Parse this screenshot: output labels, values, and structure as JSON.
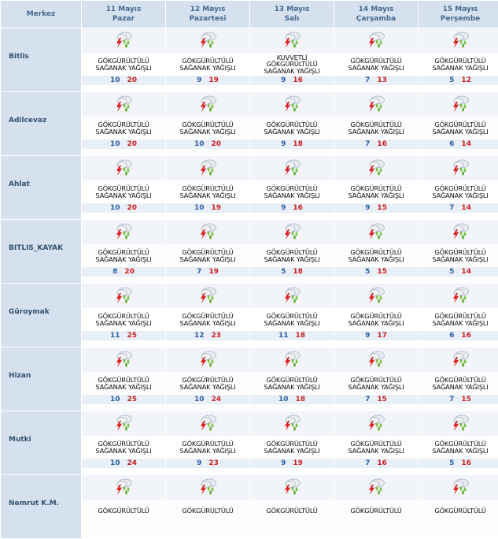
{
  "table": {
    "header_label": "Merkez",
    "days": [
      {
        "date": "11 Mayıs",
        "weekday": "Pazar"
      },
      {
        "date": "12 Mayıs",
        "weekday": "Pazartesi"
      },
      {
        "date": "13 Mayıs",
        "weekday": "Salı"
      },
      {
        "date": "14 Mayıs",
        "weekday": "Çarşamba"
      },
      {
        "date": "15 Mayıs",
        "weekday": "Perşembe"
      }
    ],
    "icon": "thunderstorm-rain-icon",
    "colors": {
      "min_temp": "#2b5fa8",
      "max_temp": "#cc1f1f",
      "header_bg": "#d5e1ee"
    },
    "rows": [
      {
        "city": "Bitlis",
        "cells": [
          {
            "desc": [
              "GÖKGÜRÜLTÜLÜ",
              "SAĞANAK YAĞIŞLI"
            ],
            "min": "10",
            "max": "20"
          },
          {
            "desc": [
              "GÖKGÜRÜLTÜLÜ",
              "SAĞANAK YAĞIŞLI"
            ],
            "min": "9",
            "max": "19"
          },
          {
            "desc": [
              "KUVVETLİ",
              "GÖKGÜRÜLTÜLÜ",
              "SAĞANAK YAĞIŞLI"
            ],
            "min": "9",
            "max": "16"
          },
          {
            "desc": [
              "GÖKGÜRÜLTÜLÜ",
              "SAĞANAK YAĞIŞLI"
            ],
            "min": "7",
            "max": "13"
          },
          {
            "desc": [
              "GÖKGÜRÜLTÜLÜ",
              "SAĞANAK YAĞIŞLI"
            ],
            "min": "5",
            "max": "12"
          }
        ]
      },
      {
        "city": "Adilcevaz",
        "cells": [
          {
            "desc": [
              "GÖKGÜRÜLTÜLÜ",
              "SAĞANAK YAĞIŞLI"
            ],
            "min": "10",
            "max": "20"
          },
          {
            "desc": [
              "GÖKGÜRÜLTÜLÜ",
              "SAĞANAK YAĞIŞLI"
            ],
            "min": "10",
            "max": "20"
          },
          {
            "desc": [
              "GÖKGÜRÜLTÜLÜ",
              "SAĞANAK YAĞIŞLI"
            ],
            "min": "9",
            "max": "18"
          },
          {
            "desc": [
              "GÖKGÜRÜLTÜLÜ",
              "SAĞANAK YAĞIŞLI"
            ],
            "min": "7",
            "max": "16"
          },
          {
            "desc": [
              "GÖKGÜRÜLTÜLÜ",
              "SAĞANAK YAĞIŞLI"
            ],
            "min": "6",
            "max": "14"
          }
        ]
      },
      {
        "city": "Ahlat",
        "cells": [
          {
            "desc": [
              "GÖKGÜRÜLTÜLÜ",
              "SAĞANAK YAĞIŞLI"
            ],
            "min": "10",
            "max": "20"
          },
          {
            "desc": [
              "GÖKGÜRÜLTÜLÜ",
              "SAĞANAK YAĞIŞLI"
            ],
            "min": "10",
            "max": "19"
          },
          {
            "desc": [
              "GÖKGÜRÜLTÜLÜ",
              "SAĞANAK YAĞIŞLI"
            ],
            "min": "9",
            "max": "16"
          },
          {
            "desc": [
              "GÖKGÜRÜLTÜLÜ",
              "SAĞANAK YAĞIŞLI"
            ],
            "min": "9",
            "max": "15"
          },
          {
            "desc": [
              "GÖKGÜRÜLTÜLÜ",
              "SAĞANAK YAĞIŞLI"
            ],
            "min": "7",
            "max": "14"
          }
        ]
      },
      {
        "city": "BITLIS_KAYAK",
        "cells": [
          {
            "desc": [
              "GÖKGÜRÜLTÜLÜ",
              "SAĞANAK YAĞIŞLI"
            ],
            "min": "8",
            "max": "20"
          },
          {
            "desc": [
              "GÖKGÜRÜLTÜLÜ",
              "SAĞANAK YAĞIŞLI"
            ],
            "min": "7",
            "max": "19"
          },
          {
            "desc": [
              "GÖKGÜRÜLTÜLÜ",
              "SAĞANAK YAĞIŞLI"
            ],
            "min": "5",
            "max": "18"
          },
          {
            "desc": [
              "GÖKGÜRÜLTÜLÜ",
              "SAĞANAK YAĞIŞLI"
            ],
            "min": "5",
            "max": "15"
          },
          {
            "desc": [
              "GÖKGÜRÜLTÜLÜ",
              "SAĞANAK YAĞIŞLI"
            ],
            "min": "5",
            "max": "14"
          }
        ]
      },
      {
        "city": "Güroymak",
        "cells": [
          {
            "desc": [
              "GÖKGÜRÜLTÜLÜ",
              "SAĞANAK YAĞIŞLI"
            ],
            "min": "11",
            "max": "25"
          },
          {
            "desc": [
              "GÖKGÜRÜLTÜLÜ",
              "SAĞANAK YAĞIŞLI"
            ],
            "min": "12",
            "max": "23"
          },
          {
            "desc": [
              "GÖKGÜRÜLTÜLÜ",
              "SAĞANAK YAĞIŞLI"
            ],
            "min": "11",
            "max": "18"
          },
          {
            "desc": [
              "GÖKGÜRÜLTÜLÜ",
              "SAĞANAK YAĞIŞLI"
            ],
            "min": "9",
            "max": "17"
          },
          {
            "desc": [
              "GÖKGÜRÜLTÜLÜ",
              "SAĞANAK YAĞIŞLI"
            ],
            "min": "6",
            "max": "16"
          }
        ]
      },
      {
        "city": "Hizan",
        "cells": [
          {
            "desc": [
              "GÖKGÜRÜLTÜLÜ",
              "SAĞANAK YAĞIŞLI"
            ],
            "min": "10",
            "max": "25"
          },
          {
            "desc": [
              "GÖKGÜRÜLTÜLÜ",
              "SAĞANAK YAĞIŞLI"
            ],
            "min": "10",
            "max": "24"
          },
          {
            "desc": [
              "GÖKGÜRÜLTÜLÜ",
              "SAĞANAK YAĞIŞLI"
            ],
            "min": "10",
            "max": "18"
          },
          {
            "desc": [
              "GÖKGÜRÜLTÜLÜ",
              "SAĞANAK YAĞIŞLI"
            ],
            "min": "7",
            "max": "15"
          },
          {
            "desc": [
              "GÖKGÜRÜLTÜLÜ",
              "SAĞANAK YAĞIŞLI"
            ],
            "min": "7",
            "max": "15"
          }
        ]
      },
      {
        "city": "Mutki",
        "cells": [
          {
            "desc": [
              "GÖKGÜRÜLTÜLÜ",
              "SAĞANAK YAĞIŞLI"
            ],
            "min": "10",
            "max": "24"
          },
          {
            "desc": [
              "GÖKGÜRÜLTÜLÜ",
              "SAĞANAK YAĞIŞLI"
            ],
            "min": "9",
            "max": "23"
          },
          {
            "desc": [
              "GÖKGÜRÜLTÜLÜ",
              "SAĞANAK YAĞIŞLI"
            ],
            "min": "9",
            "max": "19"
          },
          {
            "desc": [
              "GÖKGÜRÜLTÜLÜ",
              "SAĞANAK YAĞIŞLI"
            ],
            "min": "7",
            "max": "16"
          },
          {
            "desc": [
              "GÖKGÜRÜLTÜLÜ",
              "SAĞANAK YAĞIŞLI"
            ],
            "min": "5",
            "max": "16"
          }
        ]
      },
      {
        "city": "Nemrut K.M.",
        "cells": [
          {
            "desc": [
              "GÖKGÜRÜLTÜLÜ"
            ]
          },
          {
            "desc": [
              "GÖKGÜRÜLTÜLÜ"
            ]
          },
          {
            "desc": [
              "GÖKGÜRÜLTÜLÜ"
            ]
          },
          {
            "desc": [
              "GÖKGÜRÜLTÜLÜ"
            ]
          },
          {
            "desc": [
              "GÖKGÜRÜLTÜLÜ"
            ]
          }
        ]
      }
    ]
  }
}
